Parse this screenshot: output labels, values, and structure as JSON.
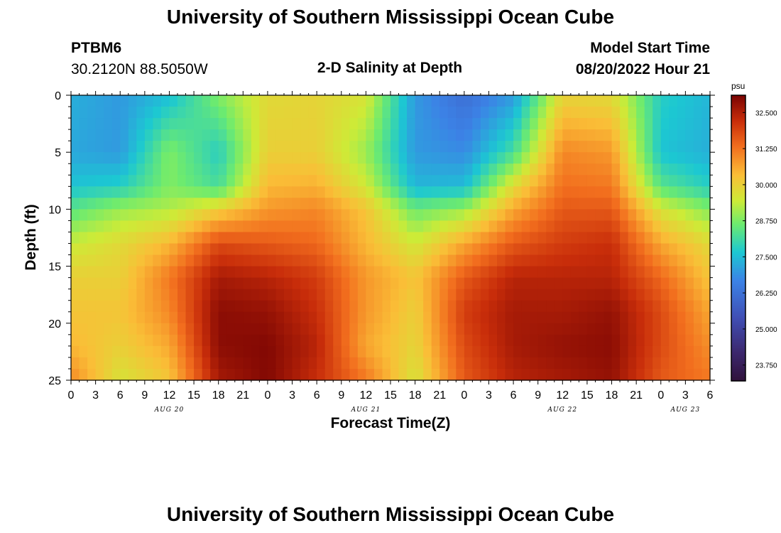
{
  "header": {
    "title": "University of Southern Mississippi Ocean Cube",
    "station_id": "PTBM6",
    "coords": "30.2120N  88.5050W",
    "chart_title": "2-D Salinity at Depth",
    "model_start_label": "Model Start Time",
    "model_start_value": "08/20/2022 Hour 21"
  },
  "footer": {
    "title": "University of Southern Mississippi Ocean Cube"
  },
  "chart_data": {
    "type": "heatmap",
    "title": "2-D Salinity at Depth",
    "xlabel": "Forecast Time(Z)",
    "ylabel": "Depth (ft)",
    "colorbar_unit": "psu",
    "x_hours": [
      0,
      78
    ],
    "y_range": [
      0,
      25
    ],
    "x_tick_labels": [
      "0",
      "3",
      "6",
      "9",
      "12",
      "15",
      "18",
      "21",
      "0",
      "3",
      "6",
      "9",
      "12",
      "15",
      "18",
      "21",
      "0",
      "3",
      "6",
      "9",
      "12",
      "15",
      "18",
      "21",
      "0",
      "3",
      "6"
    ],
    "y_tick_labels": [
      "0",
      "5",
      "10",
      "15",
      "20",
      "25"
    ],
    "y_tick_values": [
      0,
      5,
      10,
      15,
      20,
      25
    ],
    "date_labels": [
      {
        "text": "AUG 20",
        "hour": 12
      },
      {
        "text": "AUG 21",
        "hour": 36
      },
      {
        "text": "AUG 22",
        "hour": 60
      },
      {
        "text": "AUG 23",
        "hour": 75
      }
    ],
    "colorbar_labels": [
      "32.500",
      "31.250",
      "30.000",
      "28.750",
      "27.500",
      "26.250",
      "25.000",
      "23.750"
    ],
    "colorbar_values": [
      32.5,
      31.25,
      30.0,
      28.75,
      27.5,
      26.25,
      25.0,
      23.75
    ],
    "colorbar_range": [
      23.2,
      33.1
    ],
    "grid": {
      "depths_ft": [
        0,
        5,
        8,
        10,
        13,
        16,
        19,
        22,
        25
      ],
      "hours": [
        0,
        6,
        12,
        18,
        24,
        30,
        36,
        42,
        48,
        54,
        60,
        66,
        72,
        78
      ],
      "salinity": [
        [
          27.3,
          27.0,
          27.5,
          28.8,
          29.8,
          29.9,
          29.6,
          27.0,
          26.2,
          27.0,
          29.9,
          29.8,
          27.8,
          27.4
        ],
        [
          27.2,
          27.0,
          28.8,
          27.8,
          30.0,
          30.0,
          29.0,
          27.0,
          26.8,
          28.2,
          31.0,
          30.8,
          27.6,
          27.3
        ],
        [
          27.6,
          27.8,
          28.8,
          28.2,
          30.4,
          30.5,
          29.5,
          27.4,
          27.5,
          29.8,
          31.3,
          31.2,
          28.4,
          27.8
        ],
        [
          28.4,
          29.0,
          29.2,
          30.0,
          30.8,
          31.0,
          30.2,
          28.6,
          29.0,
          30.6,
          31.6,
          31.6,
          29.6,
          28.8
        ],
        [
          29.4,
          29.8,
          30.4,
          31.8,
          31.6,
          31.4,
          30.4,
          29.5,
          30.6,
          31.6,
          32.0,
          32.2,
          30.6,
          29.8
        ],
        [
          30.0,
          30.0,
          31.2,
          32.6,
          32.4,
          32.0,
          30.8,
          30.2,
          31.6,
          32.4,
          32.4,
          32.4,
          31.4,
          30.2
        ],
        [
          30.2,
          30.2,
          31.0,
          32.9,
          32.8,
          32.2,
          30.8,
          30.0,
          32.0,
          32.6,
          32.6,
          32.8,
          31.8,
          30.6
        ],
        [
          30.4,
          30.0,
          30.6,
          32.9,
          33.0,
          32.4,
          30.6,
          29.9,
          31.8,
          32.6,
          32.8,
          32.9,
          31.8,
          30.9
        ],
        [
          31.0,
          29.6,
          30.2,
          32.6,
          33.0,
          32.2,
          31.2,
          29.6,
          31.6,
          32.4,
          32.6,
          32.8,
          31.6,
          31.2
        ]
      ]
    }
  }
}
